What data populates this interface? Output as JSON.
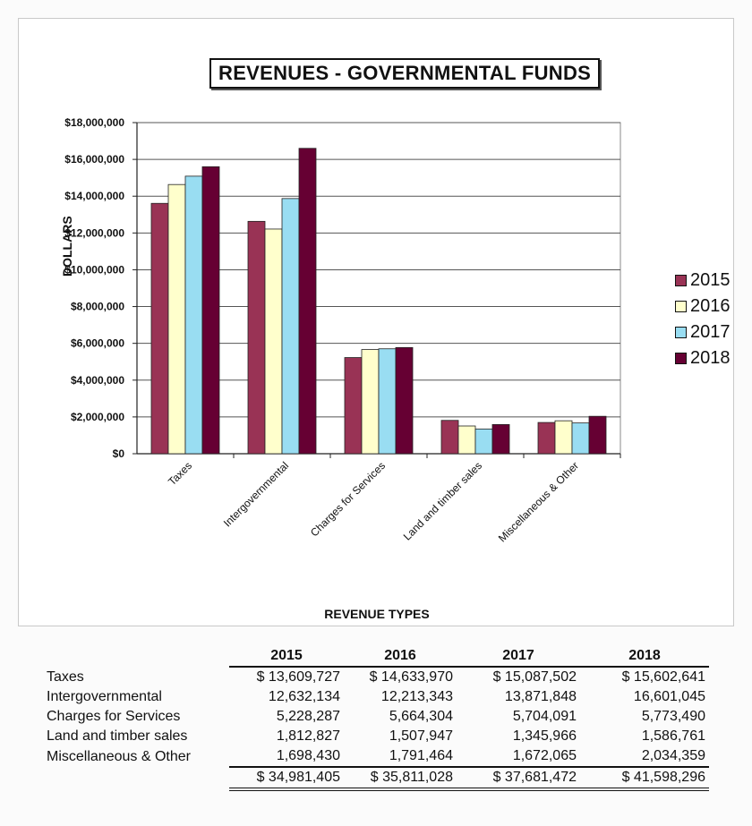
{
  "chart_data": {
    "type": "bar",
    "title": "REVENUES - GOVERNMENTAL FUNDS",
    "xlabel": "REVENUE TYPES",
    "ylabel": "DOLLARS",
    "ylim": [
      0,
      18000000
    ],
    "yticks": [
      0,
      2000000,
      4000000,
      6000000,
      8000000,
      10000000,
      12000000,
      14000000,
      16000000,
      18000000
    ],
    "ytick_labels": [
      "$0",
      "$2,000,000",
      "$4,000,000",
      "$6,000,000",
      "$8,000,000",
      "$10,000,000",
      "$12,000,000",
      "$14,000,000",
      "$16,000,000",
      "$18,000,000"
    ],
    "grid": true,
    "legend_position": "right",
    "categories": [
      "Taxes",
      "Intergovernmental",
      "Charges for Services",
      "Land and timber sales",
      "Miscellaneous & Other"
    ],
    "series": [
      {
        "name": "2015",
        "color": "#993355",
        "values": [
          13609727,
          12632134,
          5228287,
          1812827,
          1698430
        ]
      },
      {
        "name": "2016",
        "color": "#ffffcc",
        "values": [
          14633970,
          12213343,
          5664304,
          1507947,
          1791464
        ]
      },
      {
        "name": "2017",
        "color": "#99ddf2",
        "values": [
          15087502,
          13871848,
          5704091,
          1345966,
          1672065
        ]
      },
      {
        "name": "2018",
        "color": "#660033",
        "values": [
          15602641,
          16601045,
          5773490,
          1586761,
          2034359
        ]
      }
    ]
  },
  "table": {
    "headers": [
      "",
      "2015",
      "2016",
      "2017",
      "2018"
    ],
    "rows": [
      {
        "label": "Taxes",
        "v2015": "$ 13,609,727",
        "v2016": "$ 14,633,970",
        "v2017": "$ 15,087,502",
        "v2018": "$   15,602,641"
      },
      {
        "label": "Intergovernmental",
        "v2015": "12,632,134",
        "v2016": "12,213,343",
        "v2017": "13,871,848",
        "v2018": "16,601,045"
      },
      {
        "label": "Charges for Services",
        "v2015": "5,228,287",
        "v2016": "5,664,304",
        "v2017": "5,704,091",
        "v2018": "5,773,490"
      },
      {
        "label": "Land and timber sales",
        "v2015": "1,812,827",
        "v2016": "1,507,947",
        "v2017": "1,345,966",
        "v2018": "1,586,761"
      },
      {
        "label": "Miscellaneous & Other",
        "v2015": "1,698,430",
        "v2016": "1,791,464",
        "v2017": "1,672,065",
        "v2018": "2,034,359"
      }
    ],
    "total": {
      "label": "",
      "v2015": "$ 34,981,405",
      "v2016": "$ 35,811,028",
      "v2017": "$ 37,681,472",
      "v2018": "$   41,598,296"
    }
  }
}
